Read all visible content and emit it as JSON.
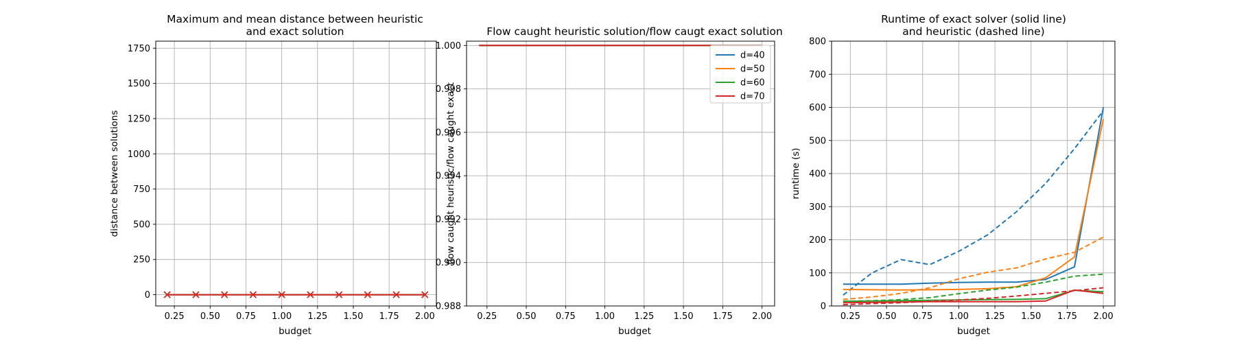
{
  "chart_data": [
    {
      "type": "line",
      "title_lines": [
        "Maximum and mean distance between heuristic",
        "and exact solution"
      ],
      "xlabel": "budget",
      "ylabel": "distance between solutions",
      "xlim": [
        0.12,
        2.08
      ],
      "ylim": [
        -80,
        1800
      ],
      "xticks": [
        "0.25",
        "0.50",
        "0.75",
        "1.00",
        "1.25",
        "1.50",
        "1.75",
        "2.00"
      ],
      "yticks": [
        "0",
        "250",
        "500",
        "750",
        "1000",
        "1250",
        "1500",
        "1750"
      ],
      "grid": true,
      "series": [
        {
          "name": "d=40",
          "color": "#1f77b4",
          "marker": "x",
          "dash": false,
          "x": [
            0.2,
            0.4,
            0.6,
            0.8,
            1.0,
            1.2,
            1.4,
            1.6,
            1.8,
            2.0
          ],
          "y": [
            0,
            0,
            0,
            0,
            0,
            0,
            0,
            0,
            0,
            0
          ]
        },
        {
          "name": "d=50",
          "color": "#ff7f0e",
          "marker": "x",
          "dash": false,
          "x": [
            0.2,
            0.4,
            0.6,
            0.8,
            1.0,
            1.2,
            1.4,
            1.6,
            1.8,
            2.0
          ],
          "y": [
            0,
            0,
            0,
            0,
            0,
            0,
            0,
            0,
            0,
            0
          ]
        },
        {
          "name": "d=60",
          "color": "#2ca02c",
          "marker": "x",
          "dash": false,
          "x": [
            0.2,
            0.4,
            0.6,
            0.8,
            1.0,
            1.2,
            1.4,
            1.6,
            1.8,
            2.0
          ],
          "y": [
            0,
            0,
            0,
            0,
            0,
            0,
            0,
            0,
            0,
            0
          ]
        },
        {
          "name": "d=70",
          "color": "#d62728",
          "marker": "x",
          "dash": false,
          "x": [
            0.2,
            0.4,
            0.6,
            0.8,
            1.0,
            1.2,
            1.4,
            1.6,
            1.8,
            2.0
          ],
          "y": [
            0,
            0,
            0,
            0,
            0,
            0,
            0,
            0,
            0,
            0
          ]
        }
      ]
    },
    {
      "type": "line",
      "title_lines": [
        "Flow caught heuristic solution/flow caugt exact solution"
      ],
      "xlabel": "budget",
      "ylabel": "flow caught heuristic/flow caught exact",
      "xlim": [
        0.12,
        2.08
      ],
      "ylim": [
        0.988,
        1.0002
      ],
      "xticks": [
        "0.25",
        "0.50",
        "0.75",
        "1.00",
        "1.25",
        "1.50",
        "1.75",
        "2.00"
      ],
      "yticks": [
        "0.988",
        "0.990",
        "0.992",
        "0.994",
        "0.996",
        "0.998",
        "1.000"
      ],
      "grid": true,
      "legend": {
        "position": "top-right",
        "entries": [
          "d=40",
          "d=50",
          "d=60",
          "d=70"
        ]
      },
      "series": [
        {
          "name": "d=40",
          "color": "#1f77b4",
          "dash": false,
          "x": [
            0.2,
            0.4,
            0.6,
            0.8,
            1.0,
            1.2,
            1.4,
            1.6,
            1.8,
            2.0
          ],
          "y": [
            1.0,
            1.0,
            1.0,
            1.0,
            1.0,
            1.0,
            1.0,
            1.0,
            1.0,
            1.0
          ]
        },
        {
          "name": "d=50",
          "color": "#ff7f0e",
          "dash": false,
          "x": [
            0.2,
            0.4,
            0.6,
            0.8,
            1.0,
            1.2,
            1.4,
            1.6,
            1.8,
            2.0
          ],
          "y": [
            1.0,
            1.0,
            1.0,
            1.0,
            1.0,
            1.0,
            1.0,
            1.0,
            1.0,
            1.0
          ]
        },
        {
          "name": "d=60",
          "color": "#2ca02c",
          "dash": false,
          "x": [
            0.2,
            0.4,
            0.6,
            0.8,
            1.0,
            1.2,
            1.4,
            1.6,
            1.8,
            2.0
          ],
          "y": [
            1.0,
            1.0,
            1.0,
            1.0,
            1.0,
            1.0,
            1.0,
            1.0,
            1.0,
            1.0
          ]
        },
        {
          "name": "d=70",
          "color": "#d62728",
          "dash": false,
          "x": [
            0.2,
            0.4,
            0.6,
            0.8,
            1.0,
            1.2,
            1.4,
            1.6,
            1.8,
            2.0
          ],
          "y": [
            1.0,
            1.0,
            1.0,
            1.0,
            1.0,
            1.0,
            1.0,
            1.0,
            1.0,
            1.0
          ]
        }
      ]
    },
    {
      "type": "line",
      "title_lines": [
        "Runtime of exact solver (solid line)",
        "and heuristic (dashed line)"
      ],
      "xlabel": "budget",
      "ylabel": "runtime (s)",
      "xlim": [
        0.12,
        2.08
      ],
      "ylim": [
        0,
        800
      ],
      "xticks": [
        "0.25",
        "0.50",
        "0.75",
        "1.00",
        "1.25",
        "1.50",
        "1.75",
        "2.00"
      ],
      "yticks": [
        "0",
        "100",
        "200",
        "300",
        "400",
        "500",
        "600",
        "700",
        "800"
      ],
      "grid": true,
      "series": [
        {
          "name": "d=40",
          "color": "#1f77b4",
          "dash": false,
          "x": [
            0.2,
            0.4,
            0.6,
            0.8,
            1.0,
            1.2,
            1.4,
            1.6,
            1.8,
            2.0
          ],
          "y": [
            66,
            66,
            66,
            69,
            71,
            72,
            72,
            80,
            118,
            600
          ]
        },
        {
          "name": "d=40",
          "color": "#1f77b4",
          "dash": true,
          "x": [
            0.2,
            0.4,
            0.6,
            0.8,
            1.0,
            1.2,
            1.4,
            1.6,
            1.8,
            2.0
          ],
          "y": [
            33,
            100,
            140,
            125,
            165,
            215,
            285,
            370,
            475,
            590
          ]
        },
        {
          "name": "d=50",
          "color": "#ff7f0e",
          "dash": false,
          "x": [
            0.2,
            0.4,
            0.6,
            0.8,
            1.0,
            1.2,
            1.4,
            1.6,
            1.8,
            2.0
          ],
          "y": [
            50,
            49,
            48,
            49,
            50,
            52,
            58,
            85,
            148,
            565
          ]
        },
        {
          "name": "d=50",
          "color": "#ff7f0e",
          "dash": true,
          "x": [
            0.2,
            0.4,
            0.6,
            0.8,
            1.0,
            1.2,
            1.4,
            1.6,
            1.8,
            2.0
          ],
          "y": [
            20,
            27,
            38,
            55,
            82,
            102,
            115,
            142,
            162,
            208
          ]
        },
        {
          "name": "d=60",
          "color": "#2ca02c",
          "dash": false,
          "x": [
            0.2,
            0.4,
            0.6,
            0.8,
            1.0,
            1.2,
            1.4,
            1.6,
            1.8,
            2.0
          ],
          "y": [
            14,
            15,
            16,
            17,
            18,
            19,
            20,
            22,
            47,
            43
          ]
        },
        {
          "name": "d=60",
          "color": "#2ca02c",
          "dash": true,
          "x": [
            0.2,
            0.4,
            0.6,
            0.8,
            1.0,
            1.2,
            1.4,
            1.6,
            1.8,
            2.0
          ],
          "y": [
            14,
            16,
            19,
            25,
            37,
            48,
            57,
            72,
            90,
            96
          ]
        },
        {
          "name": "d=70",
          "color": "#d62728",
          "dash": false,
          "x": [
            0.2,
            0.4,
            0.6,
            0.8,
            1.0,
            1.2,
            1.4,
            1.6,
            1.8,
            2.0
          ],
          "y": [
            10,
            11,
            12,
            13,
            13,
            13,
            13,
            15,
            48,
            38
          ]
        },
        {
          "name": "d=70",
          "color": "#d62728",
          "dash": true,
          "x": [
            0.2,
            0.4,
            0.6,
            0.8,
            1.0,
            1.2,
            1.4,
            1.6,
            1.8,
            2.0
          ],
          "y": [
            4,
            7,
            10,
            14,
            18,
            23,
            30,
            38,
            46,
            55
          ]
        }
      ]
    }
  ]
}
